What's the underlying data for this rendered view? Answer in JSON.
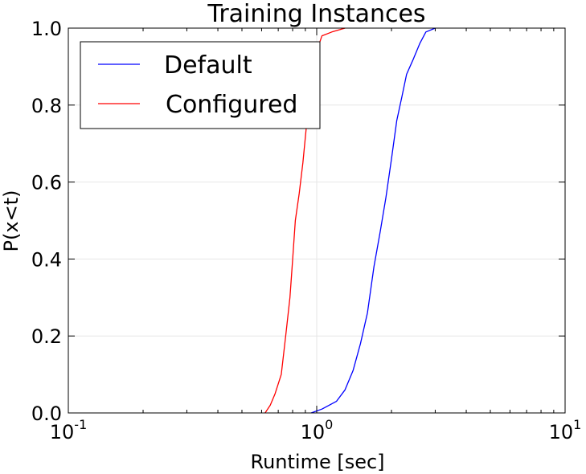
{
  "chart_data": {
    "type": "line",
    "title": "Training Instances",
    "xlabel": "Runtime [sec]",
    "ylabel": "P(x<t)",
    "xscale": "log",
    "xlim": [
      0.1,
      10
    ],
    "ylim": [
      0.0,
      1.0
    ],
    "grid": true,
    "legend_position": "top-left",
    "x_ticks": [
      {
        "base": "10",
        "exp": "-1",
        "value": 0.1
      },
      {
        "base": "10",
        "exp": "0",
        "value": 1
      },
      {
        "base": "10",
        "exp": "1",
        "value": 10
      }
    ],
    "y_ticks": [
      {
        "label": "0.0",
        "value": 0.0
      },
      {
        "label": "0.2",
        "value": 0.2
      },
      {
        "label": "0.4",
        "value": 0.4
      },
      {
        "label": "0.6",
        "value": 0.6
      },
      {
        "label": "0.8",
        "value": 0.8
      },
      {
        "label": "1.0",
        "value": 1.0
      }
    ],
    "series": [
      {
        "name": "Default",
        "color": "#0000ff",
        "x": [
          0.95,
          1.05,
          1.2,
          1.3,
          1.4,
          1.5,
          1.6,
          1.7,
          1.8,
          1.9,
          2.0,
          2.1,
          2.2,
          2.3,
          2.45,
          2.6,
          2.75,
          3.0
        ],
        "y": [
          0.0,
          0.01,
          0.03,
          0.06,
          0.11,
          0.18,
          0.26,
          0.38,
          0.47,
          0.56,
          0.66,
          0.76,
          0.82,
          0.88,
          0.92,
          0.96,
          0.99,
          1.0
        ]
      },
      {
        "name": "Configured",
        "color": "#ff0000",
        "x": [
          0.62,
          0.65,
          0.68,
          0.72,
          0.75,
          0.78,
          0.8,
          0.82,
          0.85,
          0.88,
          0.92,
          0.95,
          1.0,
          1.05,
          1.15,
          1.3
        ],
        "y": [
          0.0,
          0.02,
          0.05,
          0.1,
          0.2,
          0.3,
          0.4,
          0.5,
          0.57,
          0.65,
          0.78,
          0.9,
          0.94,
          0.98,
          0.99,
          1.0
        ]
      }
    ]
  }
}
